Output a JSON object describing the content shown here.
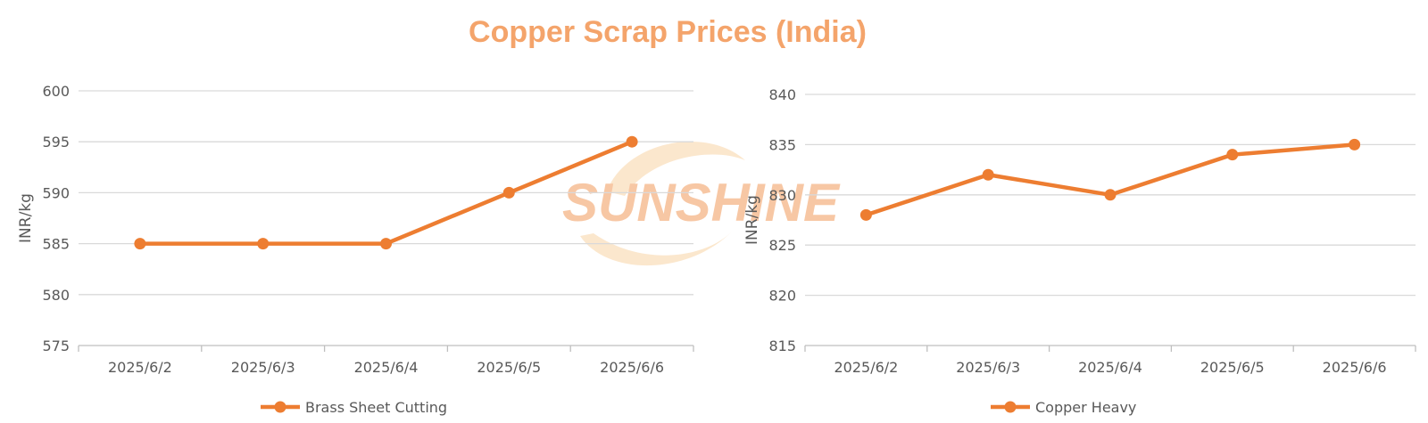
{
  "title": "Copper Scrap Prices (India)",
  "watermark": "SUNSHINE",
  "colors": {
    "line": "#ED7D31",
    "title": "#F4A46B",
    "grid": "#D9D9D9",
    "axis": "#BFBFBF",
    "text": "#595959",
    "watermark": "#F6BE95",
    "watermark_arc": "#FBE3C5"
  },
  "chart_data": [
    {
      "type": "line",
      "categories": [
        "2025/6/2",
        "2025/6/3",
        "2025/6/4",
        "2025/6/5",
        "2025/6/6"
      ],
      "series": [
        {
          "name": "Brass Sheet Cutting",
          "values": [
            585,
            585,
            585,
            590,
            595
          ]
        }
      ],
      "ylabel": "INR/kg",
      "ylim": [
        575,
        600
      ],
      "yticks": [
        575,
        580,
        585,
        590,
        595,
        600
      ],
      "grid": true,
      "legend": "bottom"
    },
    {
      "type": "line",
      "categories": [
        "2025/6/2",
        "2025/6/3",
        "2025/6/4",
        "2025/6/5",
        "2025/6/6"
      ],
      "series": [
        {
          "name": "Copper Heavy",
          "values": [
            828,
            832,
            830,
            834,
            835
          ]
        }
      ],
      "ylabel": "INR/kg",
      "ylim": [
        815,
        840
      ],
      "yticks": [
        815,
        820,
        825,
        830,
        835,
        840
      ],
      "grid": true,
      "legend": "bottom"
    }
  ]
}
